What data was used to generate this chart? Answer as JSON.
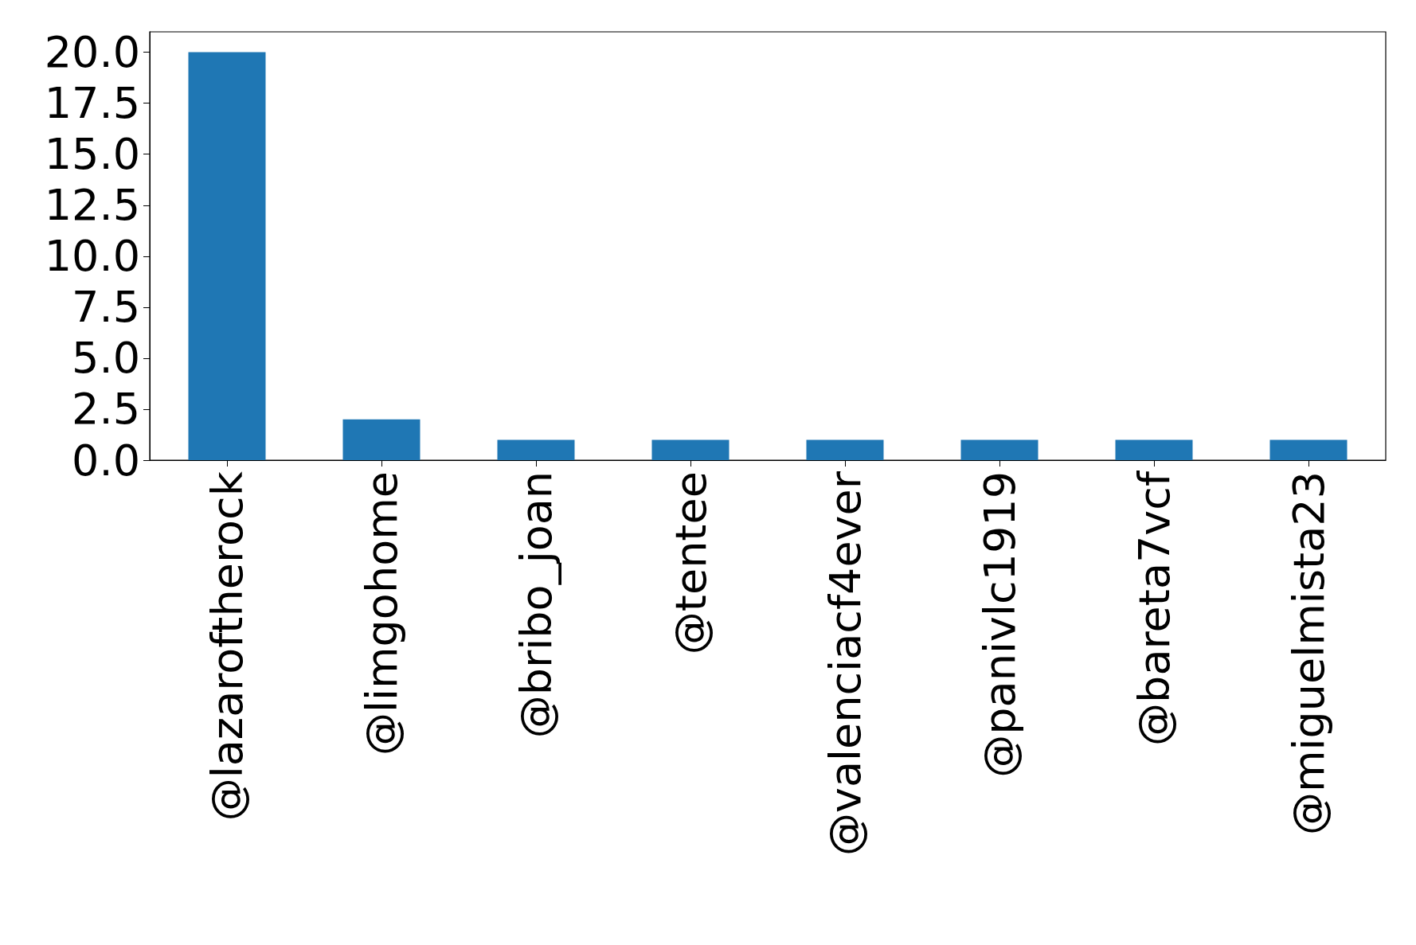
{
  "chart_data": {
    "type": "bar",
    "categories": [
      "@lazaroftherock",
      "@limgohome",
      "@bribo_joan",
      "@tentee",
      "@valenciacf4ever",
      "@panivlc1919",
      "@bareta7vcf",
      "@miguelmista23"
    ],
    "values": [
      20,
      2,
      1,
      1,
      1,
      1,
      1,
      1
    ],
    "color": "#1f77b4",
    "ylim": [
      0,
      21
    ],
    "yticks": [
      {
        "value": 0,
        "label": "0.0"
      },
      {
        "value": 2.5,
        "label": "2.5"
      },
      {
        "value": 5,
        "label": "5.0"
      },
      {
        "value": 7.5,
        "label": "7.5"
      },
      {
        "value": 10,
        "label": "10.0"
      },
      {
        "value": 12.5,
        "label": "12.5"
      },
      {
        "value": 15,
        "label": "15.0"
      },
      {
        "value": 17.5,
        "label": "17.5"
      },
      {
        "value": 20,
        "label": "20.0"
      }
    ]
  }
}
